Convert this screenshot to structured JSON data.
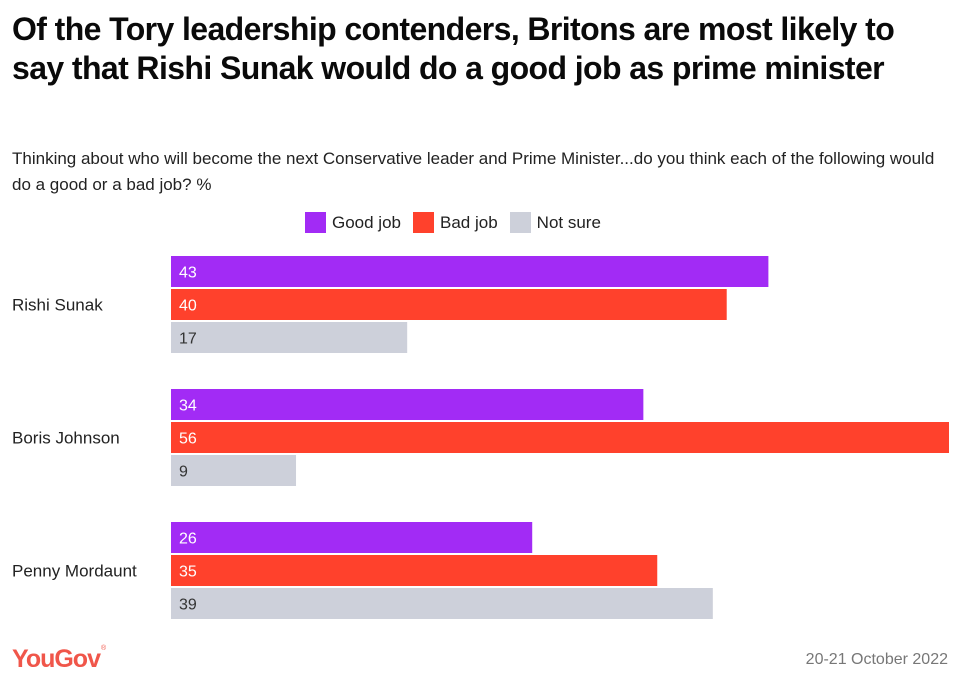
{
  "header": {
    "title": "Of the Tory leadership contenders, Britons are most likely to say that Rishi Sunak would do a good job as prime minister",
    "subtitle": "Thinking about who will become the next Conservative leader and Prime Minister...do you think each of the following would do a good or a bad job? %"
  },
  "footer": {
    "logo": "YouGov",
    "date": "20-21 October 2022"
  },
  "chart_data": {
    "type": "bar",
    "orientation": "horizontal",
    "title": "Of the Tory leadership contenders, Britons are most likely to say that Rishi Sunak would do a good job as prime minister",
    "subtitle": "Thinking about who will become the next Conservative leader and Prime Minister...do you think each of the following would do a good or a bad job? %",
    "xlabel": "",
    "ylabel": "",
    "xlim": [
      0,
      56
    ],
    "grid": false,
    "legend_position": "top-center",
    "categories": [
      "Rishi Sunak",
      "Boris Johnson",
      "Penny Mordaunt"
    ],
    "series": [
      {
        "name": "Good job",
        "color": "#a22bf5",
        "label_color": "#ffffff",
        "values": [
          43,
          34,
          26
        ]
      },
      {
        "name": "Bad job",
        "color": "#ff412c",
        "label_color": "#ffffff",
        "values": [
          40,
          56,
          35
        ]
      },
      {
        "name": "Not sure",
        "color": "#cdd0da",
        "label_color": "#333333",
        "values": [
          17,
          9,
          39
        ]
      }
    ]
  }
}
